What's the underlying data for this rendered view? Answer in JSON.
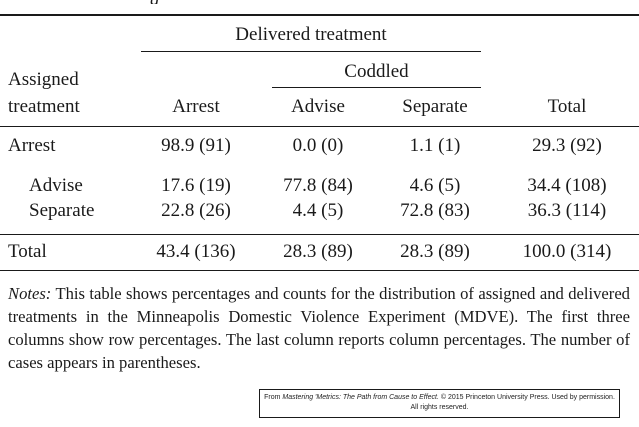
{
  "table": {
    "spanner_delivered": "Delivered treatment",
    "spanner_coddled": "Coddled",
    "row_header_line1": "Assigned",
    "row_header_line2": "treatment",
    "columns": [
      "Arrest",
      "Advise",
      "Separate",
      "Total"
    ],
    "rows": [
      {
        "label": "Arrest",
        "values": [
          "98.9 (91)",
          "0.0 (0)",
          "1.1 (1)",
          "29.3 (92)"
        ]
      },
      {
        "label": "Advise",
        "values": [
          "17.6 (19)",
          "77.8 (84)",
          "4.6 (5)",
          "34.4 (108)"
        ]
      },
      {
        "label": "Separate",
        "values": [
          "22.8 (26)",
          "4.4 (5)",
          "72.8 (83)",
          "36.3 (114)"
        ]
      },
      {
        "label": "Total",
        "values": [
          "43.4 (136)",
          "28.3 (89)",
          "28.3 (89)",
          "100.0 (314)"
        ]
      }
    ]
  },
  "notes": {
    "label": "Notes:",
    "text": "This table shows percentages and counts for the distribution of assigned and delivered treatments in the Minneapolis Domestic Violence Experiment (MDVE). The first three columns show row percentages. The last column reports column percentages. The number of cases appears in parentheses."
  },
  "credit": {
    "prefix": "From ",
    "title": "Mastering 'Metrics: The Path from Cause to Effect.",
    "suffix": " © 2015 Princeton University Press. Used by permission.",
    "line2": "All rights reserved."
  }
}
